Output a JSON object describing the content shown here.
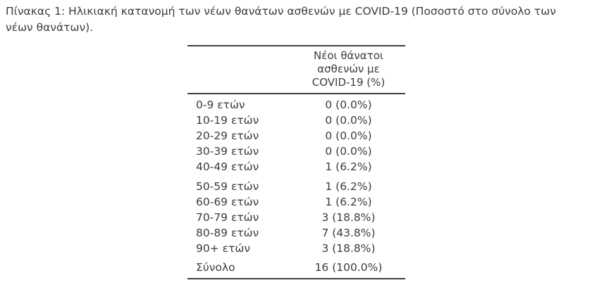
{
  "caption": "Πίνακας 1: Ηλικιακή κατανομή των νέων θανάτων ασθενών με COVID-19 (Ποσοστό στο σύνολο των νέων θανάτων).",
  "table": {
    "column_header": "Νέοι θάνατοι\nασθενών με\nCOVID-19 (%)",
    "groups": [
      {
        "rows": [
          {
            "label": "0-9 ετών",
            "value": "0 (0.0%)"
          },
          {
            "label": "10-19 ετών",
            "value": "0 (0.0%)"
          },
          {
            "label": "20-29 ετών",
            "value": "0 (0.0%)"
          },
          {
            "label": "30-39 ετών",
            "value": "0 (0.0%)"
          },
          {
            "label": "40-49 ετών",
            "value": "1 (6.2%)"
          }
        ]
      },
      {
        "rows": [
          {
            "label": "50-59 ετών",
            "value": "1 (6.2%)"
          },
          {
            "label": "60-69 ετών",
            "value": "1 (6.2%)"
          },
          {
            "label": "70-79 ετών",
            "value": "3 (18.8%)"
          },
          {
            "label": "80-89 ετών",
            "value": "7 (43.8%)"
          },
          {
            "label": "90+ ετών",
            "value": "3 (18.8%)"
          }
        ]
      }
    ],
    "total": {
      "label": "Σύνολο",
      "value": "16 (100.0%)"
    }
  },
  "chart_data": {
    "type": "table",
    "title": "Πίνακας 1: Ηλικιακή κατανομή των νέων θανάτων ασθενών με COVID-19 (Ποσοστό στο σύνολο των νέων θανάτων).",
    "column_header": "Νέοι θάνατοι ασθενών με COVID-19 (%)",
    "categories": [
      "0-9 ετών",
      "10-19 ετών",
      "20-29 ετών",
      "30-39 ετών",
      "40-49 ετών",
      "50-59 ετών",
      "60-69 ετών",
      "70-79 ετών",
      "80-89 ετών",
      "90+ ετών"
    ],
    "deaths": [
      0,
      0,
      0,
      0,
      1,
      1,
      1,
      3,
      7,
      3
    ],
    "percent": [
      0.0,
      0.0,
      0.0,
      0.0,
      6.2,
      6.2,
      6.2,
      18.8,
      43.8,
      18.8
    ],
    "total_label": "Σύνολο",
    "total_deaths": 16,
    "total_percent": 100.0
  },
  "colors": {
    "text": "#3c3c3c",
    "rule": "#3e3e3e",
    "background": "#ffffff"
  }
}
